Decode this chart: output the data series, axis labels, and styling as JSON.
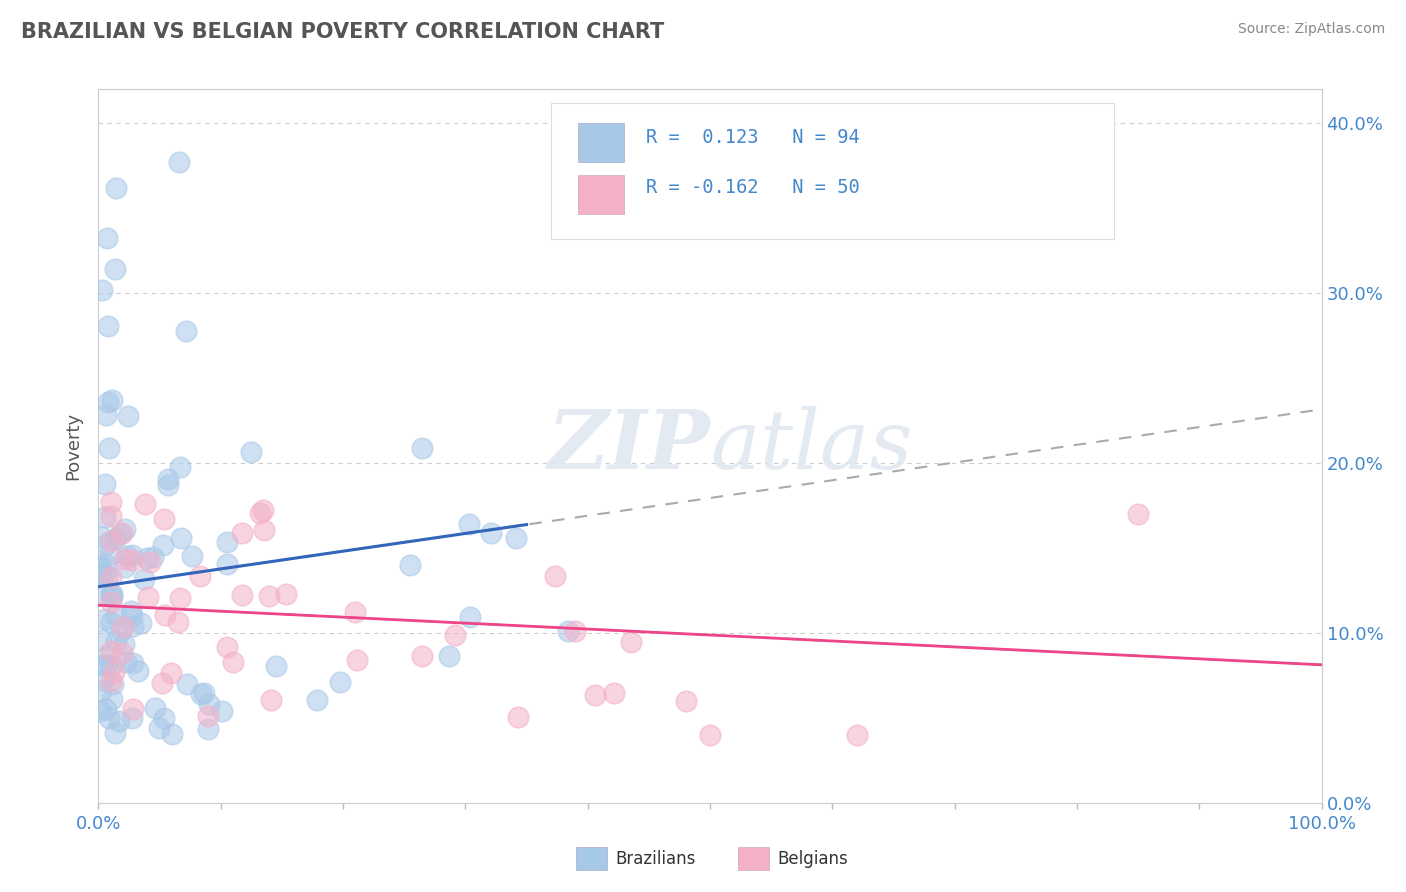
{
  "title": "BRAZILIAN VS BELGIAN POVERTY CORRELATION CHART",
  "source": "Source: ZipAtlas.com",
  "ylabel": "Poverty",
  "xlim": [
    0,
    1.0
  ],
  "ylim": [
    0,
    0.42
  ],
  "xtick_positions": [
    0.0,
    0.1,
    0.2,
    0.3,
    0.4,
    0.5,
    0.6,
    0.7,
    0.8,
    0.9,
    1.0
  ],
  "xtick_labels_sparse": {
    "0.0": "0.0%",
    "0.5": "",
    "1.0": "100.0%"
  },
  "yticks": [
    0.0,
    0.1,
    0.2,
    0.3,
    0.4
  ],
  "ytick_labels_right": [
    "0.0%",
    "10.0%",
    "20.0%",
    "30.0%",
    "40.0%"
  ],
  "brazil_R": 0.123,
  "brazil_N": 94,
  "belgium_R": -0.162,
  "belgium_N": 50,
  "brazil_color": "#a8c8e8",
  "belgium_color": "#f4b0c8",
  "brazil_line_color": "#3366bb",
  "belgium_line_color": "#ee4488",
  "trend_dash_color": "#aaaaaa",
  "background_color": "#ffffff",
  "grid_color": "#cccccc",
  "watermark_zip": "ZIP",
  "watermark_atlas": "atlas",
  "title_color": "#555555",
  "source_color": "#888888",
  "axis_label_color": "#555555",
  "right_tick_color": "#4488cc",
  "bottom_tick_color": "#4488cc"
}
